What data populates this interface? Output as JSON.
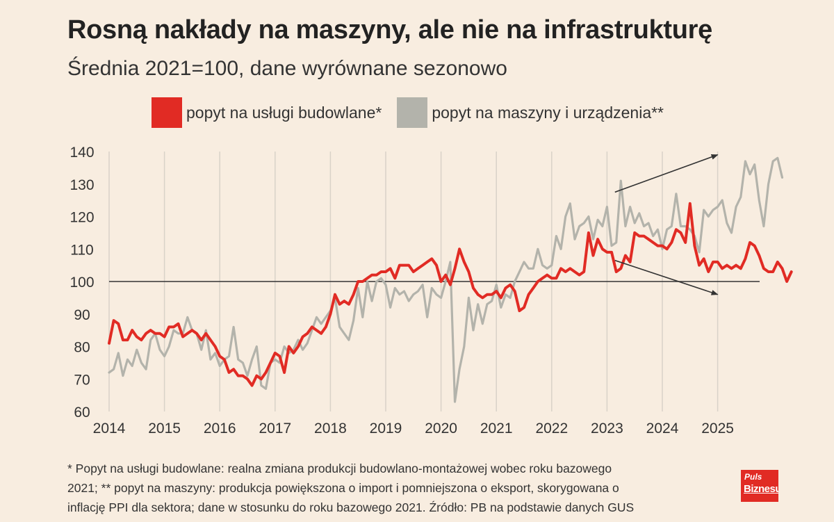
{
  "header": {
    "title": "Rosną nakłady na maszyny, ale nie na infrastrukturę",
    "subtitle": "Średnia 2021=100, dane wyrównane sezonowo"
  },
  "legend": {
    "items": [
      {
        "label": "popyt na usługi budowlane*",
        "color": "#e12b24"
      },
      {
        "label": "popyt na maszyny i urządzenia**",
        "color": "#b3b3ab"
      }
    ]
  },
  "footnote": {
    "line1": "* Popyt na usługi budowlane: realna zmiana produkcji budowlano-montażowej wobec roku bazowego",
    "line2": "2021; ** popyt na maszyny: produkcja powiększona o import i pomniejszona o eksport, skorygowana o",
    "line3": "inflację PPI dla sektora; dane w stosunku do roku bazowego 2021. Źródło: PB na podstawie danych GUS"
  },
  "logo": {
    "line1": "Puls",
    "line2": "Biznesu"
  },
  "chart_data": {
    "type": "line",
    "title": "Rosną nakłady na maszyny, ale nie na infrastrukturę",
    "subtitle": "Średnia 2021=100, dane wyrównane sezonowo",
    "xlabel": "",
    "ylabel": "",
    "x_ticks": [
      "2014",
      "2015",
      "2016",
      "2017",
      "2018",
      "2019",
      "2020",
      "2021",
      "2022",
      "2023",
      "2024",
      "2025"
    ],
    "y_ticks": [
      60,
      70,
      80,
      90,
      100,
      110,
      120,
      130,
      140
    ],
    "ylim": [
      60,
      140
    ],
    "x_start": "2014-01",
    "reference_line": 100,
    "grid": "vertical",
    "series": [
      {
        "name": "popyt na usługi budowlane*",
        "color": "#e12b24",
        "values": [
          81,
          88,
          87,
          82,
          82,
          85,
          83,
          82,
          84,
          85,
          84,
          84,
          83,
          86,
          86,
          87,
          83,
          84,
          85,
          84,
          82,
          84,
          82,
          80,
          77,
          76,
          72,
          73,
          71,
          71,
          70,
          68,
          71,
          70,
          72,
          75,
          78,
          77,
          72,
          80,
          78,
          80,
          83,
          84,
          86,
          85,
          84,
          86,
          90,
          96,
          93,
          94,
          93,
          96,
          100,
          100,
          101,
          102,
          102,
          103,
          103,
          104,
          101,
          105,
          105,
          105,
          103,
          104,
          105,
          106,
          107,
          105,
          100,
          102,
          99,
          104,
          110,
          106,
          103,
          98,
          96,
          95,
          96,
          96,
          97,
          95,
          98,
          99,
          97,
          91,
          92,
          96,
          98,
          100,
          101,
          102,
          101,
          101,
          104,
          103,
          104,
          103,
          102,
          103,
          115,
          108,
          113,
          110,
          109,
          109,
          103,
          104,
          108,
          106,
          115,
          114,
          114,
          113,
          112,
          111,
          111,
          110,
          112,
          116,
          115,
          112,
          124,
          111,
          105,
          107,
          103,
          106,
          106,
          104,
          105,
          104,
          105,
          104,
          107,
          112,
          111,
          108,
          104,
          103,
          103,
          106,
          104,
          100,
          103
        ]
      },
      {
        "name": "popyt na maszyny i urządzenia**",
        "color": "#b3b3ab",
        "values": [
          72,
          73,
          78,
          71,
          76,
          74,
          79,
          75,
          73,
          82,
          84,
          79,
          77,
          80,
          85,
          84,
          84,
          89,
          85,
          84,
          79,
          85,
          76,
          78,
          74,
          76,
          77,
          86,
          76,
          75,
          71,
          76,
          80,
          68,
          67,
          75,
          76,
          75,
          80,
          78,
          79,
          82,
          79,
          81,
          85,
          89,
          87,
          89,
          91,
          95,
          86,
          84,
          82,
          88,
          98,
          89,
          100,
          94,
          100,
          101,
          99,
          92,
          98,
          96,
          97,
          94,
          96,
          97,
          99,
          89,
          98,
          96,
          95,
          100,
          106,
          63,
          73,
          80,
          95,
          85,
          93,
          87,
          93,
          94,
          99,
          92,
          96,
          95,
          100,
          103,
          106,
          104,
          104,
          110,
          105,
          104,
          105,
          114,
          110,
          120,
          124,
          113,
          117,
          118,
          120,
          113,
          119,
          117,
          123,
          111,
          112,
          131,
          117,
          123,
          118,
          121,
          117,
          118,
          114,
          116,
          110,
          116,
          117,
          127,
          117,
          117,
          116,
          114,
          109,
          122,
          120,
          122,
          123,
          125,
          118,
          115,
          123,
          126,
          137,
          133,
          136,
          125,
          117,
          130,
          137,
          138,
          132
        ]
      }
    ],
    "annotations": [
      {
        "type": "arrow",
        "direction": "up",
        "from": {
          "x": "2022-12",
          "y": 127.5
        },
        "to": {
          "x": "2025-01",
          "y": 139
        }
      },
      {
        "type": "arrow",
        "direction": "down",
        "from": {
          "x": "2022-12",
          "y": 106.5
        },
        "to": {
          "x": "2025-01",
          "y": 96
        }
      }
    ]
  }
}
